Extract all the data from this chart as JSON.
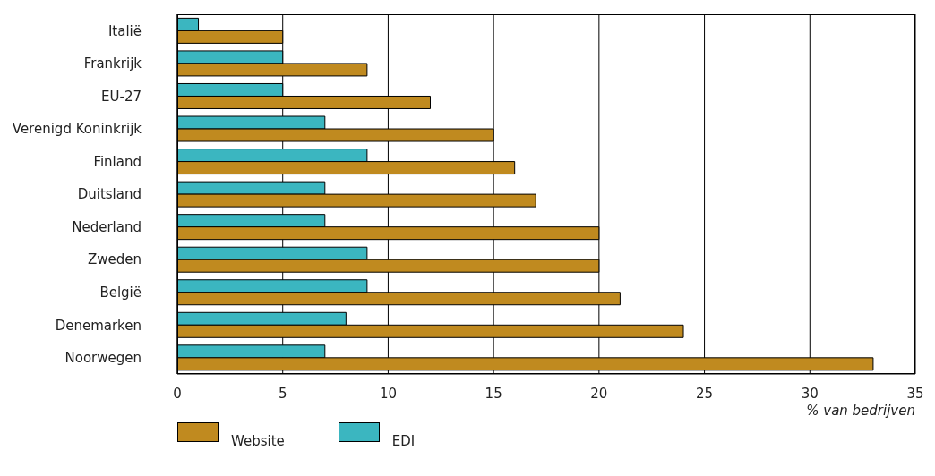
{
  "chart_data": {
    "type": "bar",
    "orientation": "horizontal",
    "xlabel": "% van bedrijven",
    "categories": [
      "Italië",
      "Frankrijk",
      "EU-27",
      "Verenigd Koninkrijk",
      "Finland",
      "Duitsland",
      "Nederland",
      "Zweden",
      "België",
      "Denemarken",
      "Noorwegen"
    ],
    "series": [
      {
        "name": "EDI",
        "color": "#3bb6c0",
        "values": [
          1,
          5,
          5,
          7,
          9,
          7,
          7,
          9,
          9,
          8,
          7
        ]
      },
      {
        "name": "Website",
        "color": "#c08a1f",
        "values": [
          5,
          9,
          12,
          15,
          16,
          17,
          20,
          20,
          21,
          24,
          33
        ]
      }
    ],
    "xlim": [
      0,
      35
    ],
    "xticks": [
      0,
      5,
      10,
      15,
      20,
      25,
      30,
      35
    ],
    "grid": "x",
    "legend": "bottom left"
  }
}
